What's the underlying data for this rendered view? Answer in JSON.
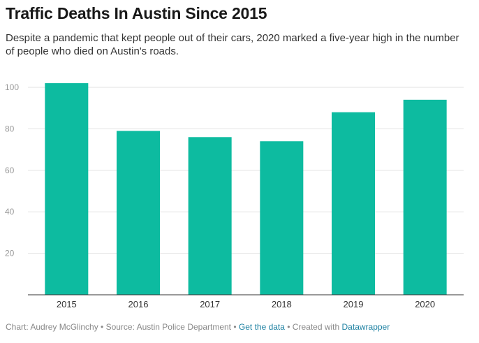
{
  "header": {
    "title": "Traffic Deaths In Austin Since 2015",
    "subtitle": "Despite a pandemic that kept people out of their cars, 2020 marked a five-year high in the number of people who died on Austin's roads."
  },
  "chart_data": {
    "type": "bar",
    "categories": [
      "2015",
      "2016",
      "2017",
      "2018",
      "2019",
      "2020"
    ],
    "values": [
      102,
      79,
      76,
      74,
      88,
      94
    ],
    "yticks": [
      "100",
      "80",
      "60",
      "40",
      "20"
    ],
    "ylim": [
      0,
      100
    ],
    "xlabel": "",
    "ylabel": "",
    "grid": true,
    "bar_color": "#0dbba0"
  },
  "footer": {
    "credit": "Chart: Audrey McGlinchy • Source: Austin Police Department • ",
    "get_data": "Get the data",
    "sep": " • Created with ",
    "datawrapper": "Datawrapper"
  }
}
